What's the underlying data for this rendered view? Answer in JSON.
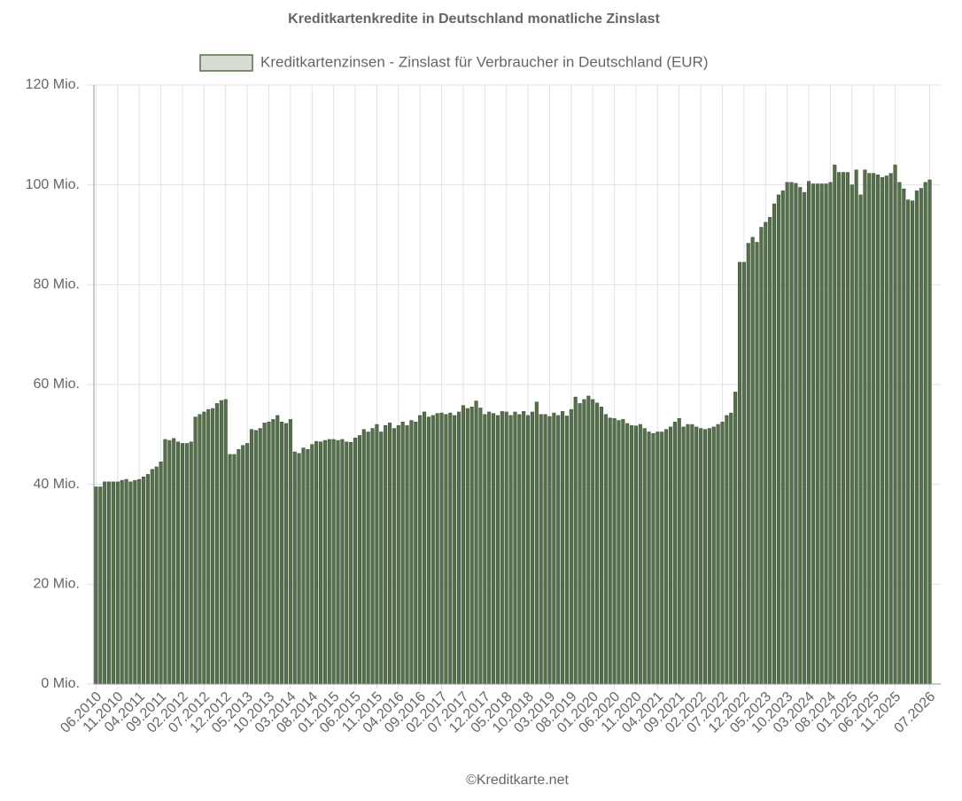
{
  "chart_data": {
    "type": "bar",
    "title": "Kreditkartenkredite in Deutschland monatliche Zinslast",
    "source": "©Kreditkarte.net",
    "grid": true,
    "legend": "top",
    "categories": [
      "06.2010",
      null,
      null,
      null,
      null,
      "11.2010",
      null,
      null,
      null,
      null,
      "04.2011",
      null,
      null,
      null,
      null,
      "09.2011",
      null,
      null,
      null,
      null,
      "02.2012",
      null,
      null,
      null,
      null,
      "07.2012",
      null,
      null,
      null,
      null,
      "12.2012",
      null,
      null,
      null,
      null,
      "05.2013",
      null,
      null,
      null,
      null,
      "10.2013",
      null,
      null,
      null,
      null,
      "03.2014",
      null,
      null,
      null,
      null,
      "08.2014",
      null,
      null,
      null,
      null,
      "01.2015",
      null,
      null,
      null,
      null,
      "06.2015",
      null,
      null,
      null,
      null,
      "11.2015",
      null,
      null,
      null,
      null,
      "04.2016",
      null,
      null,
      null,
      null,
      "09.2016",
      null,
      null,
      null,
      null,
      "02.2017",
      null,
      null,
      null,
      null,
      "07.2017",
      null,
      null,
      null,
      null,
      "12.2017",
      null,
      null,
      null,
      null,
      "05.2018",
      null,
      null,
      null,
      null,
      "10.2018",
      null,
      null,
      null,
      null,
      "03.2019",
      null,
      null,
      null,
      null,
      "08.2019",
      null,
      null,
      null,
      null,
      "01.2020",
      null,
      null,
      null,
      null,
      "06.2020",
      null,
      null,
      null,
      null,
      "11.2020",
      null,
      null,
      null,
      null,
      "04.2021",
      null,
      null,
      null,
      null,
      "09.2021",
      null,
      null,
      null,
      null,
      "02.2022",
      null,
      null,
      null,
      null,
      "07.2022",
      null,
      null,
      null,
      null,
      "12.2022",
      null,
      null,
      null,
      null,
      "05.2023",
      null,
      null,
      null,
      null,
      "10.2023",
      null,
      null,
      null,
      null,
      "03.2024",
      null,
      null,
      null,
      null,
      "08.2024",
      null,
      null,
      null,
      null,
      "01.2025",
      null,
      null,
      null,
      null,
      "06.2025",
      null,
      null,
      null,
      null,
      "11.2025",
      null,
      null,
      null,
      null,
      null,
      null,
      null,
      "07.2026"
    ],
    "series": [
      {
        "name": "Kreditkartenzinsen - Zinslast für Verbraucher in Deutschland (EUR)",
        "color": "#566f4c",
        "values": [
          39.5,
          39.5,
          40.5,
          40.5,
          40.5,
          40.5,
          40.8,
          41,
          40.5,
          40.8,
          41,
          41.5,
          42,
          43,
          43.5,
          44.5,
          49,
          48.8,
          49.2,
          48.5,
          48.2,
          48.2,
          48.5,
          53.5,
          54,
          54.5,
          55,
          55.2,
          56.2,
          56.8,
          57,
          46,
          46,
          47,
          47.8,
          48.2,
          51,
          50.8,
          51.2,
          52.3,
          52.5,
          53,
          53.8,
          52.5,
          52.2,
          53,
          46.5,
          46.2,
          47.3,
          47,
          48,
          48.6,
          48.5,
          48.8,
          49,
          49,
          48.8,
          49,
          48.5,
          48.4,
          49.3,
          49.8,
          51,
          50.5,
          51.2,
          52,
          50.5,
          51.8,
          52.3,
          51.2,
          51.8,
          52.5,
          51.8,
          52.8,
          52.5,
          53.8,
          54.5,
          53.5,
          53.8,
          54.2,
          54.3,
          54,
          54.3,
          53.8,
          54.5,
          55.8,
          55.2,
          55.5,
          56.7,
          55.3,
          54,
          54.5,
          54.2,
          53.8,
          54.6,
          54.5,
          53.8,
          54.5,
          54,
          54.6,
          53.8,
          54.5,
          56.5,
          54,
          54,
          53.6,
          54.3,
          53.8,
          54.6,
          53.7,
          55,
          57.5,
          56.2,
          57,
          57.7,
          57,
          56.3,
          55.5,
          54,
          53.3,
          53.2,
          52.8,
          53,
          52.2,
          51.8,
          51.7,
          52,
          51.2,
          50.5,
          50.2,
          50.5,
          50.5,
          51,
          51.5,
          52.5,
          53.2,
          51.5,
          52,
          52,
          51.5,
          51.2,
          51,
          51.2,
          51.5,
          52,
          52.5,
          53.8,
          54.3,
          58.5,
          84.5,
          84.5,
          88.3,
          89.5,
          88.5,
          91.5,
          92.5,
          93.5,
          96.2,
          98,
          98.8,
          100.5,
          100.5,
          100.3,
          99.5,
          98.5,
          100.7,
          100.2,
          100.2,
          100.2,
          100.2,
          100.5,
          104,
          102.5,
          102.5,
          102.5,
          100,
          103,
          98,
          103,
          102.3,
          102.3,
          102,
          101.5,
          101.8,
          102.3,
          104,
          100.5,
          99.2,
          97,
          96.8,
          98.8,
          99.3,
          100.5,
          101
        ]
      }
    ],
    "ylim": [
      0,
      120
    ],
    "yticks": [
      {
        "value": 0,
        "label": "0 Mio."
      },
      {
        "value": 20,
        "label": "20 Mio."
      },
      {
        "value": 40,
        "label": "40 Mio."
      },
      {
        "value": 60,
        "label": "60 Mio."
      },
      {
        "value": 80,
        "label": "80 Mio."
      },
      {
        "value": 100,
        "label": "100 Mio."
      },
      {
        "value": 120,
        "label": "120 Mio."
      }
    ]
  }
}
